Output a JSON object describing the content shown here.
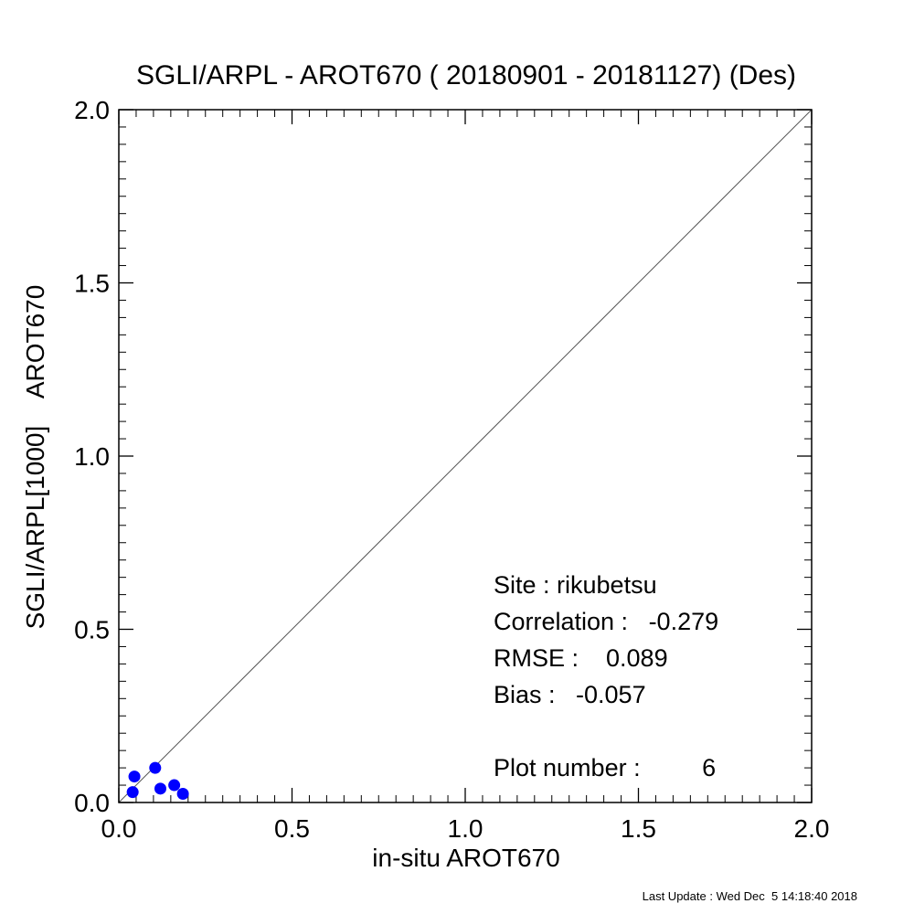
{
  "chart_data": {
    "type": "scatter",
    "title": "SGLI/ARPL - AROT670 ( 20180901 - 20181127) (Des)",
    "xlabel": "in-situ AROT670",
    "ylabel": "SGLI/ARPL[1000]    AROT670",
    "xlim": [
      0.0,
      2.0
    ],
    "ylim": [
      0.0,
      2.0
    ],
    "x_ticks": [
      "0.0",
      "0.5",
      "1.0",
      "1.5",
      "2.0"
    ],
    "y_ticks": [
      "0.0",
      "0.5",
      "1.0",
      "1.5",
      "2.0"
    ],
    "grid": false,
    "reference_line": "1:1",
    "series": [
      {
        "color": "#0000ff",
        "points": [
          {
            "x": 0.04,
            "y": 0.03
          },
          {
            "x": 0.045,
            "y": 0.075
          },
          {
            "x": 0.105,
            "y": 0.1
          },
          {
            "x": 0.12,
            "y": 0.04
          },
          {
            "x": 0.16,
            "y": 0.05
          },
          {
            "x": 0.185,
            "y": 0.025
          }
        ]
      }
    ],
    "stats": {
      "site_label": "Site : rikubetsu",
      "correlation_label": "Correlation :   -0.279",
      "rmse_label": "RMSE :    0.089",
      "bias_label": "Bias :   -0.057",
      "plot_number_label": "Plot number :         6"
    }
  },
  "footer": {
    "last_update": "Last Update : Wed Dec  5 14:18:40 2018"
  }
}
